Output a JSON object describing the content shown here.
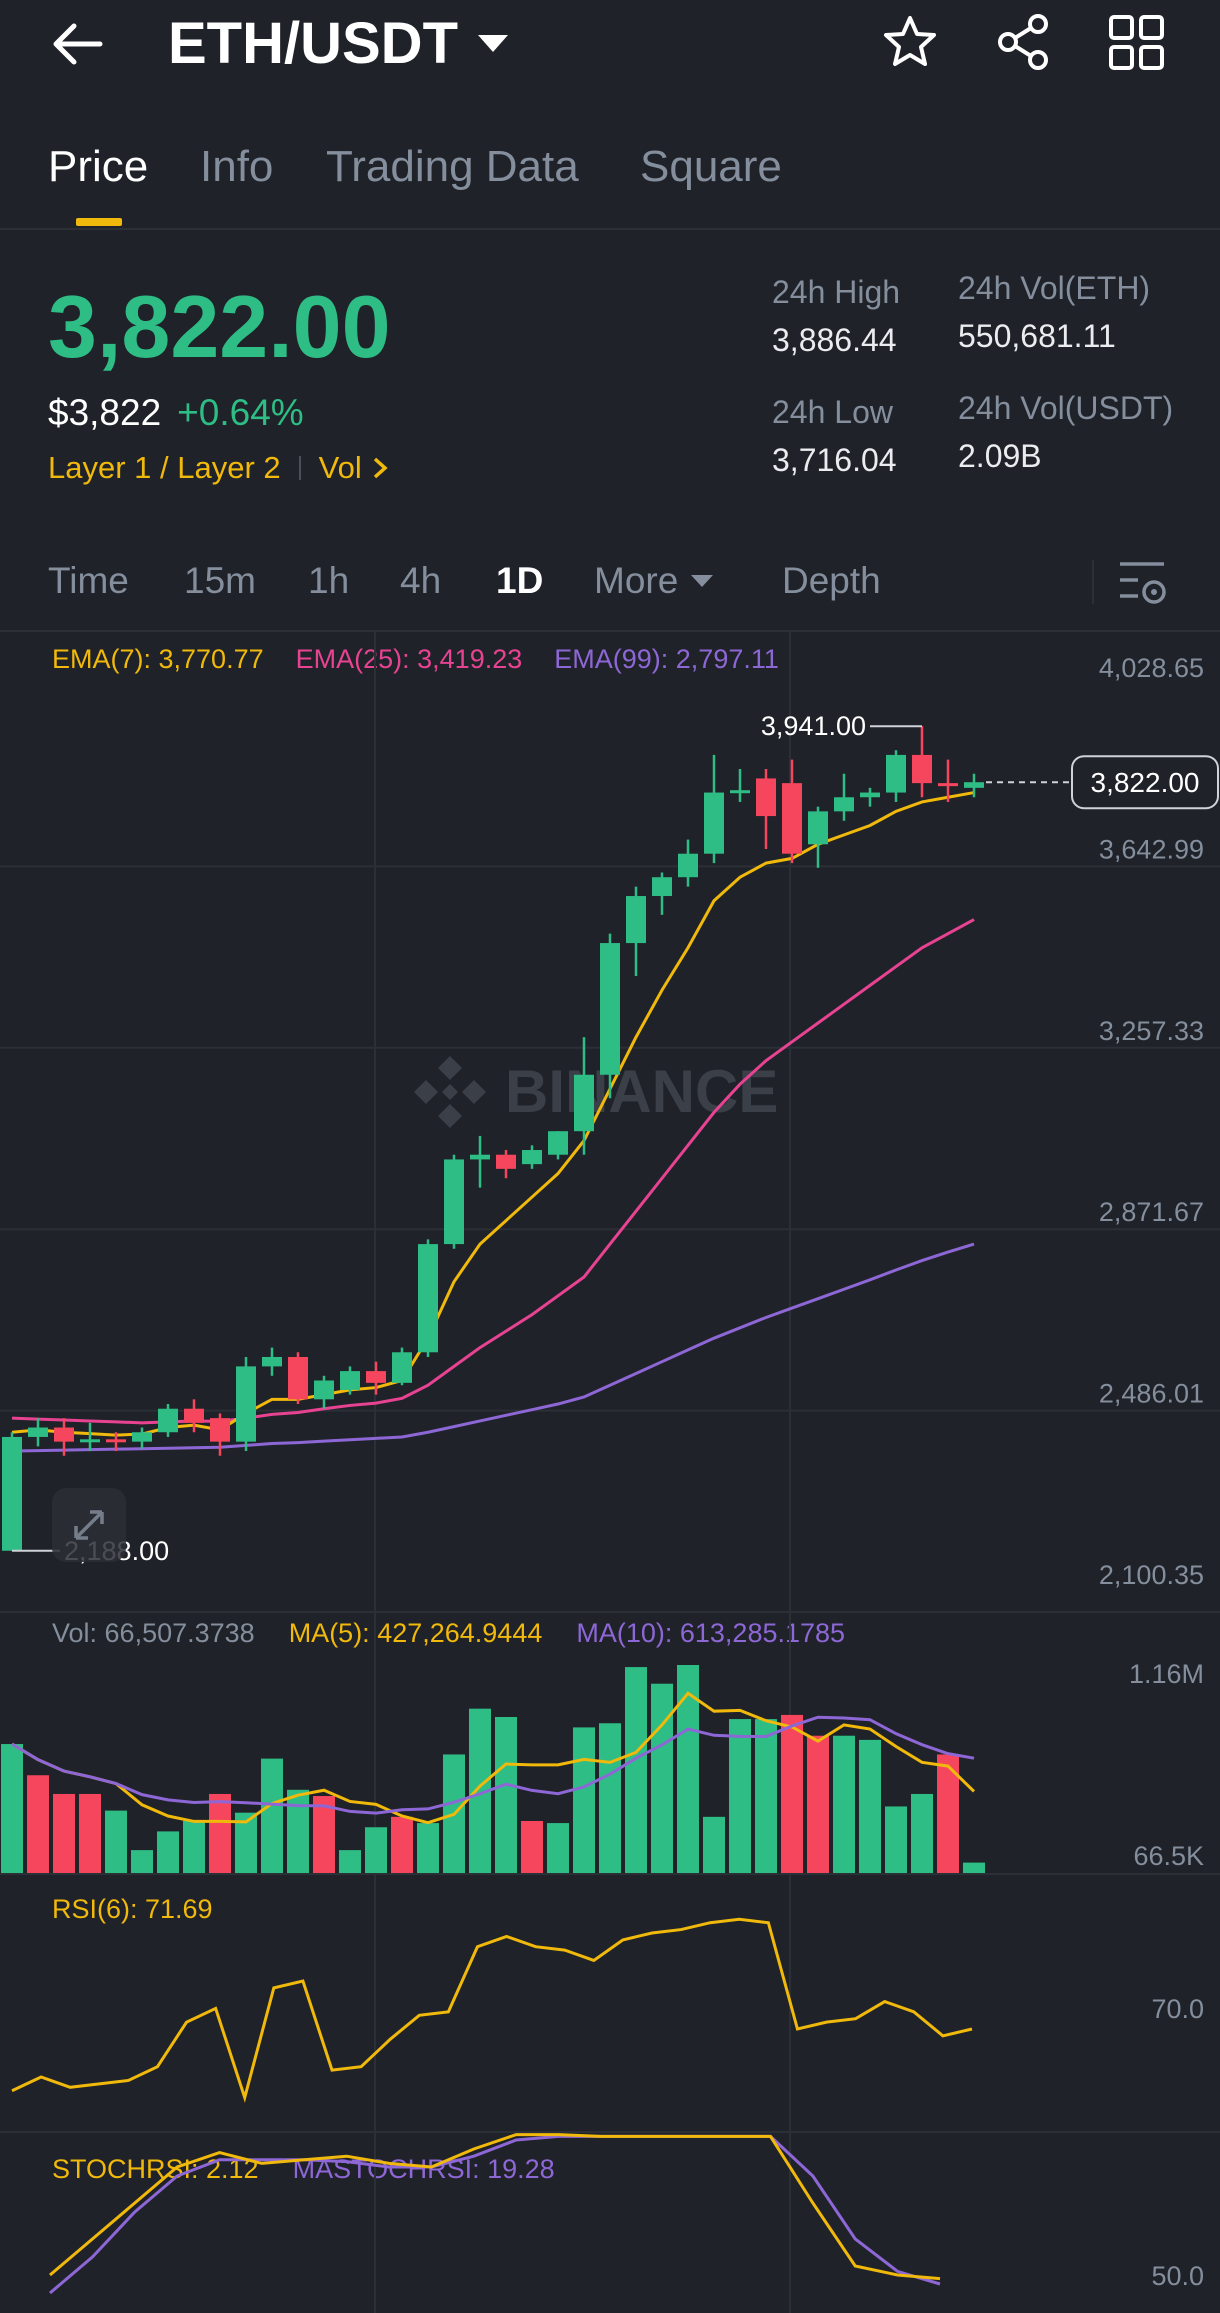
{
  "header": {
    "pair": "ETH/USDT",
    "icons": [
      "back-arrow-icon",
      "caret-down-icon",
      "star-icon",
      "share-icon",
      "grid-icon"
    ]
  },
  "tabs": [
    {
      "label": "Price",
      "active": true
    },
    {
      "label": "Info",
      "active": false
    },
    {
      "label": "Trading Data",
      "active": false
    },
    {
      "label": "Square",
      "active": false
    }
  ],
  "price": {
    "last": "3,822.00",
    "usd": "$3,822",
    "change": "+0.64%",
    "tags": "Layer 1 / Layer 2",
    "vol_link": "Vol"
  },
  "stats": {
    "high_label": "24h High",
    "high_value": "3,886.44",
    "low_label": "24h Low",
    "low_value": "3,716.04",
    "vol_eth_label": "24h Vol(ETH)",
    "vol_eth_value": "550,681.11",
    "vol_usdt_label": "24h Vol(USDT)",
    "vol_usdt_value": "2.09B"
  },
  "timeframes": [
    {
      "label": "Time",
      "active": false
    },
    {
      "label": "15m",
      "active": false
    },
    {
      "label": "1h",
      "active": false
    },
    {
      "label": "4h",
      "active": false
    },
    {
      "label": "1D",
      "active": true
    },
    {
      "label": "More",
      "active": false
    },
    {
      "label": "Depth",
      "active": false
    }
  ],
  "indicators": {
    "ema7": "EMA(7): 3,770.77",
    "ema25": "EMA(25): 3,419.23",
    "ema99": "EMA(99): 2,797.11",
    "vol": "Vol: 66,507.3738",
    "ma5": "MA(5): 427,264.9444",
    "ma10": "MA(10): 613,285.1785",
    "rsi": "RSI(6): 71.69",
    "stochrsi": "STOCHRSI: 2.12",
    "mastochrsi": "MASTOCHRSI: 19.28"
  },
  "watermark": "BINANCE",
  "colors": {
    "up": "#2ebd85",
    "down": "#f6465d",
    "ema7": "#f0b90b",
    "ema25": "#e84393",
    "ema99": "#8e67d6",
    "accent": "#f0b90b"
  },
  "chart_data": {
    "type": "candlestick",
    "price_axis": [
      "4,028.65",
      "3,642.99",
      "3,257.33",
      "2,871.67",
      "2,486.01",
      "2,100.35"
    ],
    "ylim": [
      2100.35,
      4028.65
    ],
    "current_price_label": "3,822.00",
    "max_label": "3,941.00",
    "min_label": "2,188.00",
    "candles": [
      {
        "o": 2188,
        "h": 2440,
        "l": 2188,
        "c": 2430
      },
      {
        "o": 2430,
        "h": 2470,
        "l": 2410,
        "c": 2450
      },
      {
        "o": 2450,
        "h": 2470,
        "l": 2390,
        "c": 2420
      },
      {
        "o": 2420,
        "h": 2460,
        "l": 2400,
        "c": 2425
      },
      {
        "o": 2425,
        "h": 2440,
        "l": 2400,
        "c": 2420
      },
      {
        "o": 2420,
        "h": 2450,
        "l": 2405,
        "c": 2440
      },
      {
        "o": 2440,
        "h": 2500,
        "l": 2430,
        "c": 2490
      },
      {
        "o": 2490,
        "h": 2510,
        "l": 2440,
        "c": 2460
      },
      {
        "o": 2470,
        "h": 2480,
        "l": 2390,
        "c": 2420
      },
      {
        "o": 2420,
        "h": 2600,
        "l": 2400,
        "c": 2580
      },
      {
        "o": 2580,
        "h": 2620,
        "l": 2560,
        "c": 2600
      },
      {
        "o": 2600,
        "h": 2610,
        "l": 2500,
        "c": 2510
      },
      {
        "o": 2510,
        "h": 2560,
        "l": 2490,
        "c": 2550
      },
      {
        "o": 2530,
        "h": 2580,
        "l": 2520,
        "c": 2570
      },
      {
        "o": 2570,
        "h": 2590,
        "l": 2520,
        "c": 2545
      },
      {
        "o": 2545,
        "h": 2620,
        "l": 2540,
        "c": 2610
      },
      {
        "o": 2610,
        "h": 2850,
        "l": 2600,
        "c": 2840
      },
      {
        "o": 2840,
        "h": 3030,
        "l": 2830,
        "c": 3020
      },
      {
        "o": 3020,
        "h": 3070,
        "l": 2960,
        "c": 3030
      },
      {
        "o": 3030,
        "h": 3040,
        "l": 2980,
        "c": 3000
      },
      {
        "o": 3010,
        "h": 3050,
        "l": 3000,
        "c": 3040
      },
      {
        "o": 3030,
        "h": 3080,
        "l": 3020,
        "c": 3080
      },
      {
        "o": 3080,
        "h": 3280,
        "l": 3030,
        "c": 3200
      },
      {
        "o": 3200,
        "h": 3500,
        "l": 3150,
        "c": 3480
      },
      {
        "o": 3480,
        "h": 3600,
        "l": 3410,
        "c": 3580
      },
      {
        "o": 3580,
        "h": 3630,
        "l": 3540,
        "c": 3620
      },
      {
        "o": 3620,
        "h": 3700,
        "l": 3600,
        "c": 3670
      },
      {
        "o": 3670,
        "h": 3880,
        "l": 3650,
        "c": 3800
      },
      {
        "o": 3800,
        "h": 3850,
        "l": 3780,
        "c": 3805
      },
      {
        "o": 3830,
        "h": 3850,
        "l": 3680,
        "c": 3750
      },
      {
        "o": 3820,
        "h": 3870,
        "l": 3650,
        "c": 3670
      },
      {
        "o": 3690,
        "h": 3770,
        "l": 3640,
        "c": 3760
      },
      {
        "o": 3760,
        "h": 3840,
        "l": 3740,
        "c": 3790
      },
      {
        "o": 3790,
        "h": 3810,
        "l": 3770,
        "c": 3800
      },
      {
        "o": 3800,
        "h": 3890,
        "l": 3780,
        "c": 3880
      },
      {
        "o": 3880,
        "h": 3941,
        "l": 3790,
        "c": 3820
      },
      {
        "o": 3820,
        "h": 3870,
        "l": 3780,
        "c": 3815
      },
      {
        "o": 3810,
        "h": 3840,
        "l": 3790,
        "c": 3822
      }
    ],
    "ema7": [
      2440,
      2445,
      2440,
      2437,
      2434,
      2436,
      2450,
      2455,
      2445,
      2480,
      2510,
      2510,
      2520,
      2530,
      2535,
      2550,
      2640,
      2760,
      2840,
      2890,
      2940,
      2990,
      3060,
      3170,
      3280,
      3380,
      3470,
      3570,
      3620,
      3650,
      3660,
      3690,
      3710,
      3730,
      3760,
      3780,
      3790,
      3800
    ],
    "ema25": [
      2470,
      2468,
      2466,
      2464,
      2462,
      2460,
      2462,
      2464,
      2463,
      2470,
      2478,
      2482,
      2490,
      2497,
      2502,
      2512,
      2540,
      2580,
      2620,
      2655,
      2690,
      2730,
      2770,
      2840,
      2910,
      2980,
      3050,
      3120,
      3180,
      3230,
      3270,
      3310,
      3350,
      3390,
      3430,
      3470,
      3500,
      3530
    ],
    "ema99": [
      2400,
      2401,
      2402,
      2403,
      2404,
      2405,
      2406,
      2407,
      2408,
      2412,
      2416,
      2418,
      2421,
      2424,
      2427,
      2430,
      2440,
      2452,
      2464,
      2476,
      2488,
      2500,
      2515,
      2540,
      2565,
      2590,
      2615,
      2640,
      2662,
      2684,
      2704,
      2724,
      2744,
      2764,
      2785,
      2805,
      2823,
      2840
    ],
    "volume": {
      "axis": [
        "1.16M",
        "66.5K"
      ],
      "bars": [
        0.62,
        0.47,
        0.38,
        0.38,
        0.3,
        0.11,
        0.2,
        0.25,
        0.38,
        0.29,
        0.55,
        0.4,
        0.37,
        0.11,
        0.22,
        0.27,
        0.24,
        0.57,
        0.79,
        0.75,
        0.25,
        0.24,
        0.7,
        0.72,
        0.99,
        0.91,
        1.0,
        0.27,
        0.74,
        0.74,
        0.76,
        0.66,
        0.66,
        0.64,
        0.32,
        0.38,
        0.57,
        0.05
      ],
      "up": [
        true,
        false,
        false,
        false,
        true,
        true,
        true,
        true,
        false,
        true,
        true,
        true,
        false,
        true,
        true,
        false,
        true,
        true,
        true,
        true,
        false,
        true,
        true,
        true,
        true,
        true,
        true,
        true,
        true,
        true,
        false,
        false,
        true,
        true,
        true,
        true,
        false,
        true
      ]
    },
    "rsi": {
      "axis": [
        "70.0"
      ],
      "values": [
        40,
        44,
        41,
        42,
        43,
        47,
        60,
        64,
        38,
        70,
        72,
        46,
        47,
        55,
        62,
        63,
        82,
        85,
        82,
        81,
        78,
        84,
        86,
        87,
        89,
        90,
        89,
        58,
        60,
        61,
        66,
        63,
        56,
        58
      ]
    },
    "stochrsi": {
      "axis": [
        "50.0"
      ],
      "stoch": [
        20,
        40,
        60,
        80,
        88,
        82,
        84,
        86,
        82,
        80,
        90,
        98,
        98,
        97,
        97,
        97,
        97,
        97,
        60,
        25,
        20,
        18
      ],
      "ma": [
        10,
        30,
        55,
        75,
        84,
        84,
        84,
        83,
        80,
        80,
        86,
        95,
        97,
        97,
        97,
        97,
        97,
        97,
        75,
        40,
        22,
        15
      ]
    }
  }
}
